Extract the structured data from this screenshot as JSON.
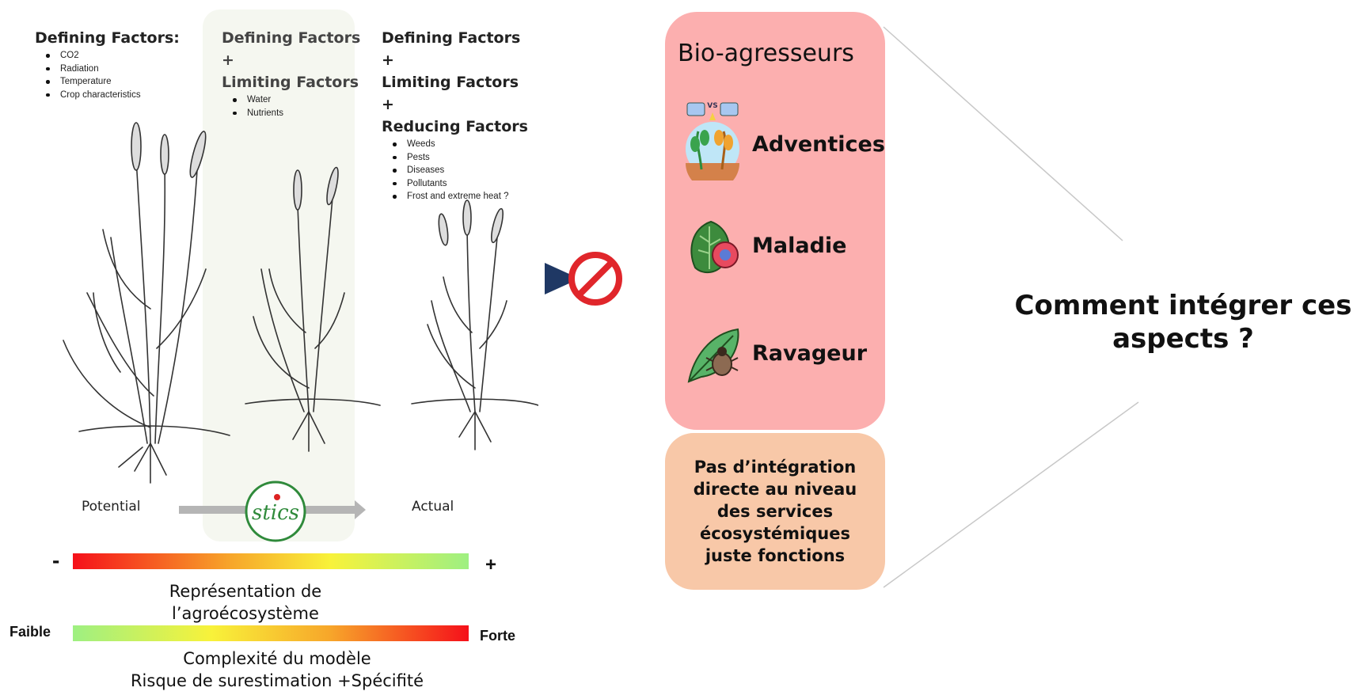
{
  "col1": {
    "heading": "Defining Factors:",
    "items": [
      "CO2",
      "Radiation",
      "Temperature",
      "Crop characteristics"
    ]
  },
  "col2": {
    "heading1": "Defining Factors",
    "plus1": "+",
    "heading2": "Limiting Factors",
    "items": [
      "Water",
      "Nutrients"
    ]
  },
  "col3": {
    "heading1": "Defining Factors",
    "plus1": "+",
    "heading2": "Limiting Factors",
    "plus2": "+",
    "heading3": "Reducing Factors",
    "items": [
      "Weeds",
      "Pests",
      "Diseases",
      "Pollutants",
      "Frost and extreme heat ?"
    ]
  },
  "plant_labels": {
    "left": "Potential",
    "right": "Actual"
  },
  "logo_text": "stics",
  "scale1": {
    "minus": "-",
    "plus": "+",
    "caption_line1": "Représentation de",
    "caption_line2": "l’agroécosystème"
  },
  "scale2": {
    "low": "Faible",
    "high": "Forte",
    "caption_line1": "Complexité du modèle",
    "caption_line2": "Risque de surestimation +Spécifité"
  },
  "bio": {
    "title": "Bio-agresseurs",
    "items": [
      {
        "label": "Adventices",
        "icon": "weeds-icon"
      },
      {
        "label": "Maladie",
        "icon": "plant-disease-icon"
      },
      {
        "label": "Ravageur",
        "icon": "pest-icon"
      }
    ]
  },
  "vs_text": "VS",
  "note": "Pas d’intégration directe au niveau des services écosystémiques juste fonctions",
  "question_line1": "Comment intégrer ces",
  "question_line2": "aspects ?",
  "colors": {
    "bio_box": "#fcafaf",
    "note_box": "#f8c8a8",
    "mid_panel": "#f5f7f0",
    "arrow": "#1f3864",
    "prohibited": "#e0262b"
  }
}
